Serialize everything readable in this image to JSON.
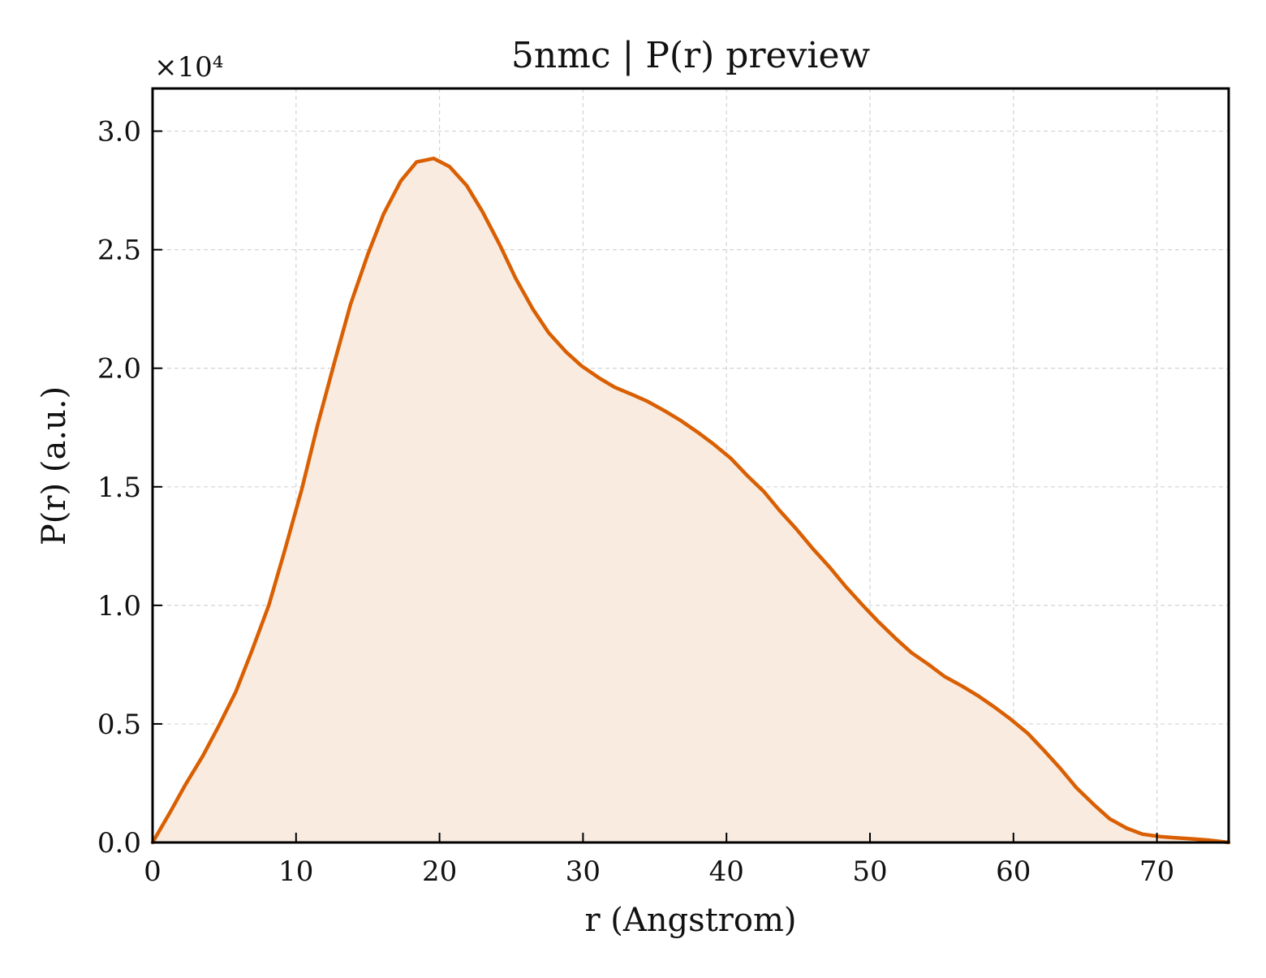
{
  "chart_data": {
    "type": "area",
    "title": "5nmc | P(r) preview",
    "xlabel": "r (Angstrom)",
    "ylabel": "P(r) (a.u.)",
    "y_multiplier_label": "×10⁴",
    "xlim": [
      0,
      75
    ],
    "ylim": [
      0,
      3.18
    ],
    "grid": true,
    "colors": {
      "line": "#d95f02",
      "fill": "#f9ebe0",
      "grid": "#d3d3d3",
      "axes": "#000000"
    },
    "xticks": [
      {
        "value": 0,
        "label": "0"
      },
      {
        "value": 10,
        "label": "10"
      },
      {
        "value": 20,
        "label": "20"
      },
      {
        "value": 30,
        "label": "30"
      },
      {
        "value": 40,
        "label": "40"
      },
      {
        "value": 50,
        "label": "50"
      },
      {
        "value": 60,
        "label": "60"
      },
      {
        "value": 70,
        "label": "70"
      }
    ],
    "yticks": [
      {
        "value": 0.0,
        "label": "0.0"
      },
      {
        "value": 0.5,
        "label": "0.5"
      },
      {
        "value": 1.0,
        "label": "1.0"
      },
      {
        "value": 1.5,
        "label": "1.5"
      },
      {
        "value": 2.0,
        "label": "2.0"
      },
      {
        "value": 2.5,
        "label": "2.5"
      },
      {
        "value": 3.0,
        "label": "3.0"
      }
    ],
    "series": [
      {
        "x": [
          0,
          1.2,
          2.3,
          3.5,
          4.6,
          5.8,
          6.9,
          8.1,
          9.2,
          10.4,
          11.5,
          12.7,
          13.8,
          15.0,
          16.1,
          17.3,
          18.4,
          19.6,
          20.7,
          21.9,
          23.0,
          24.2,
          25.3,
          26.5,
          27.6,
          28.8,
          29.9,
          31.1,
          32.2,
          33.4,
          34.5,
          35.7,
          36.8,
          38.0,
          39.1,
          40.3,
          41.4,
          42.6,
          43.7,
          44.9,
          46.0,
          47.2,
          48.3,
          49.5,
          50.6,
          51.8,
          52.9,
          54.1,
          55.2,
          56.4,
          57.5,
          58.7,
          59.8,
          61.0,
          62.1,
          63.3,
          64.4,
          65.6,
          66.7,
          67.9,
          69.0,
          70.2,
          71.3,
          72.5,
          73.6,
          75.0
        ],
        "y": [
          0.0,
          0.125,
          0.245,
          0.365,
          0.49,
          0.635,
          0.805,
          1.0,
          1.23,
          1.49,
          1.76,
          2.03,
          2.27,
          2.48,
          2.65,
          2.79,
          2.87,
          2.885,
          2.85,
          2.77,
          2.66,
          2.52,
          2.38,
          2.25,
          2.15,
          2.07,
          2.01,
          1.96,
          1.92,
          1.89,
          1.86,
          1.82,
          1.78,
          1.73,
          1.68,
          1.62,
          1.55,
          1.48,
          1.4,
          1.32,
          1.24,
          1.16,
          1.08,
          1.0,
          0.93,
          0.86,
          0.8,
          0.75,
          0.7,
          0.66,
          0.62,
          0.57,
          0.52,
          0.46,
          0.39,
          0.31,
          0.23,
          0.16,
          0.1,
          0.06,
          0.035,
          0.025,
          0.02,
          0.015,
          0.01,
          0.0
        ]
      }
    ]
  }
}
